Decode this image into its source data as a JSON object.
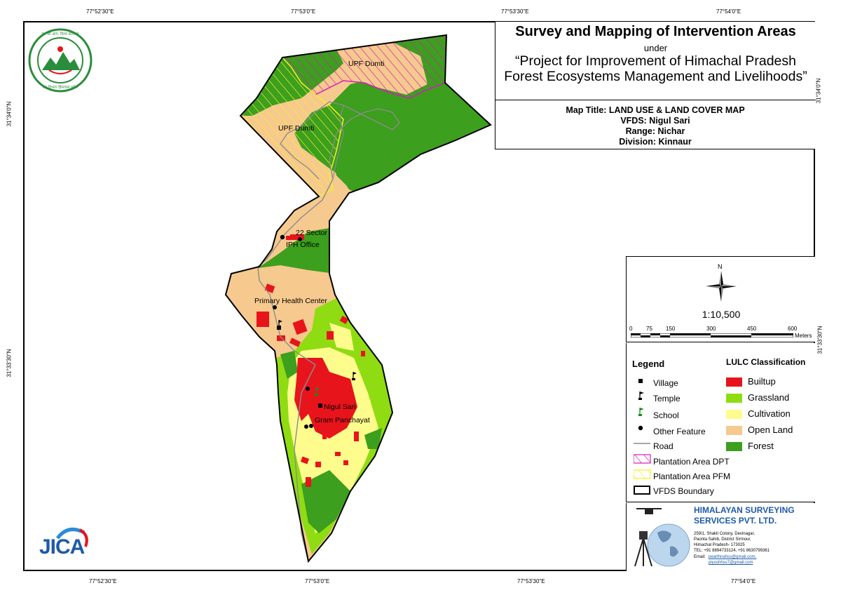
{
  "title": {
    "main": "Survey and Mapping of Intervention Areas",
    "under": "under",
    "project_line1": "“Project for Improvement of Himachal Pradesh",
    "project_line2": "Forest Ecosystems Management and Livelihoods”"
  },
  "map_info": {
    "map_title": "Map Title: LAND USE & LAND COVER MAP",
    "vfds": "VFDS: Nigul Sari",
    "range": "Range: Nichar",
    "division": "Division: Kinnaur"
  },
  "coordinates": {
    "top": [
      "77°52'30\"E",
      "77°53'0\"E",
      "77°53'30\"E",
      "77°54'0\"E"
    ],
    "bottom": [
      "77°52'30\"E",
      "77°53'0\"E",
      "77°53'30\"E",
      "77°54'0\"E"
    ],
    "left": [
      "31°34'0\"N",
      "31°33'30\"N"
    ],
    "right": [
      "31°34'0\"N",
      "31°33'30\"N"
    ]
  },
  "scale": {
    "north_label": "N",
    "ratio": "1:10,500",
    "ticks": [
      "0",
      "75",
      "150",
      "300",
      "450",
      "600"
    ],
    "unit": "Meters"
  },
  "legend": {
    "heading": "Legend",
    "items": [
      {
        "label": "Village",
        "icon": "village-square-icon"
      },
      {
        "label": "Temple",
        "icon": "temple-flag-icon"
      },
      {
        "label": "School",
        "icon": "school-flag-icon"
      },
      {
        "label": "Other Feature",
        "icon": "dot-icon"
      },
      {
        "label": "Road",
        "icon": "road-line-icon"
      },
      {
        "label": "Plantation Area DPT",
        "icon": "hatch-magenta-icon"
      },
      {
        "label": "Plantation Area PFM",
        "icon": "hatch-yellow-icon"
      },
      {
        "label": "VFDS Boundary",
        "icon": "boundary-box-icon"
      }
    ]
  },
  "lulc": {
    "heading": "LULC Classification",
    "classes": [
      {
        "label": "Builtup",
        "color": "#e8141c"
      },
      {
        "label": "Grassland",
        "color": "#8fdc12"
      },
      {
        "label": "Cultivation",
        "color": "#fefc8c"
      },
      {
        "label": "Open Land",
        "color": "#f6c98e"
      },
      {
        "label": "Forest",
        "color": "#3c9f1d"
      }
    ]
  },
  "map_labels": {
    "upf_dumti_1": "UPF Dumti",
    "upf_dumti_2": "UPF Dumti",
    "sector_22": "22 Sector",
    "iph_office": "IPH Office",
    "phc": "Primary Health Center",
    "nigul_sari": "Nigul Sari",
    "gram_panchayat": "Gram Panchayat"
  },
  "company": {
    "name_line1": "HIMALAYAN SURVEYING",
    "name_line2": "SERVICES PVT. LTD.",
    "address_lines": [
      "259/1, Shakti Colony, Devinagar,",
      "Paonta Sahib, District Sirmour,",
      "Himachal Pradesh- 173025",
      "TEL: +91 8894733124, +91 8630799361"
    ],
    "email_label": "Email:",
    "email_1": "pearthnahss@gmail.com,",
    "email_2": "piyushhss7@gmail.com"
  },
  "logos": {
    "jica": "JICA",
    "hp_forest_top": "वन की आग, विश्व कल्याण",
    "hp_forest_bottom": "वन विभाग हिमाचल प्रदेश"
  }
}
